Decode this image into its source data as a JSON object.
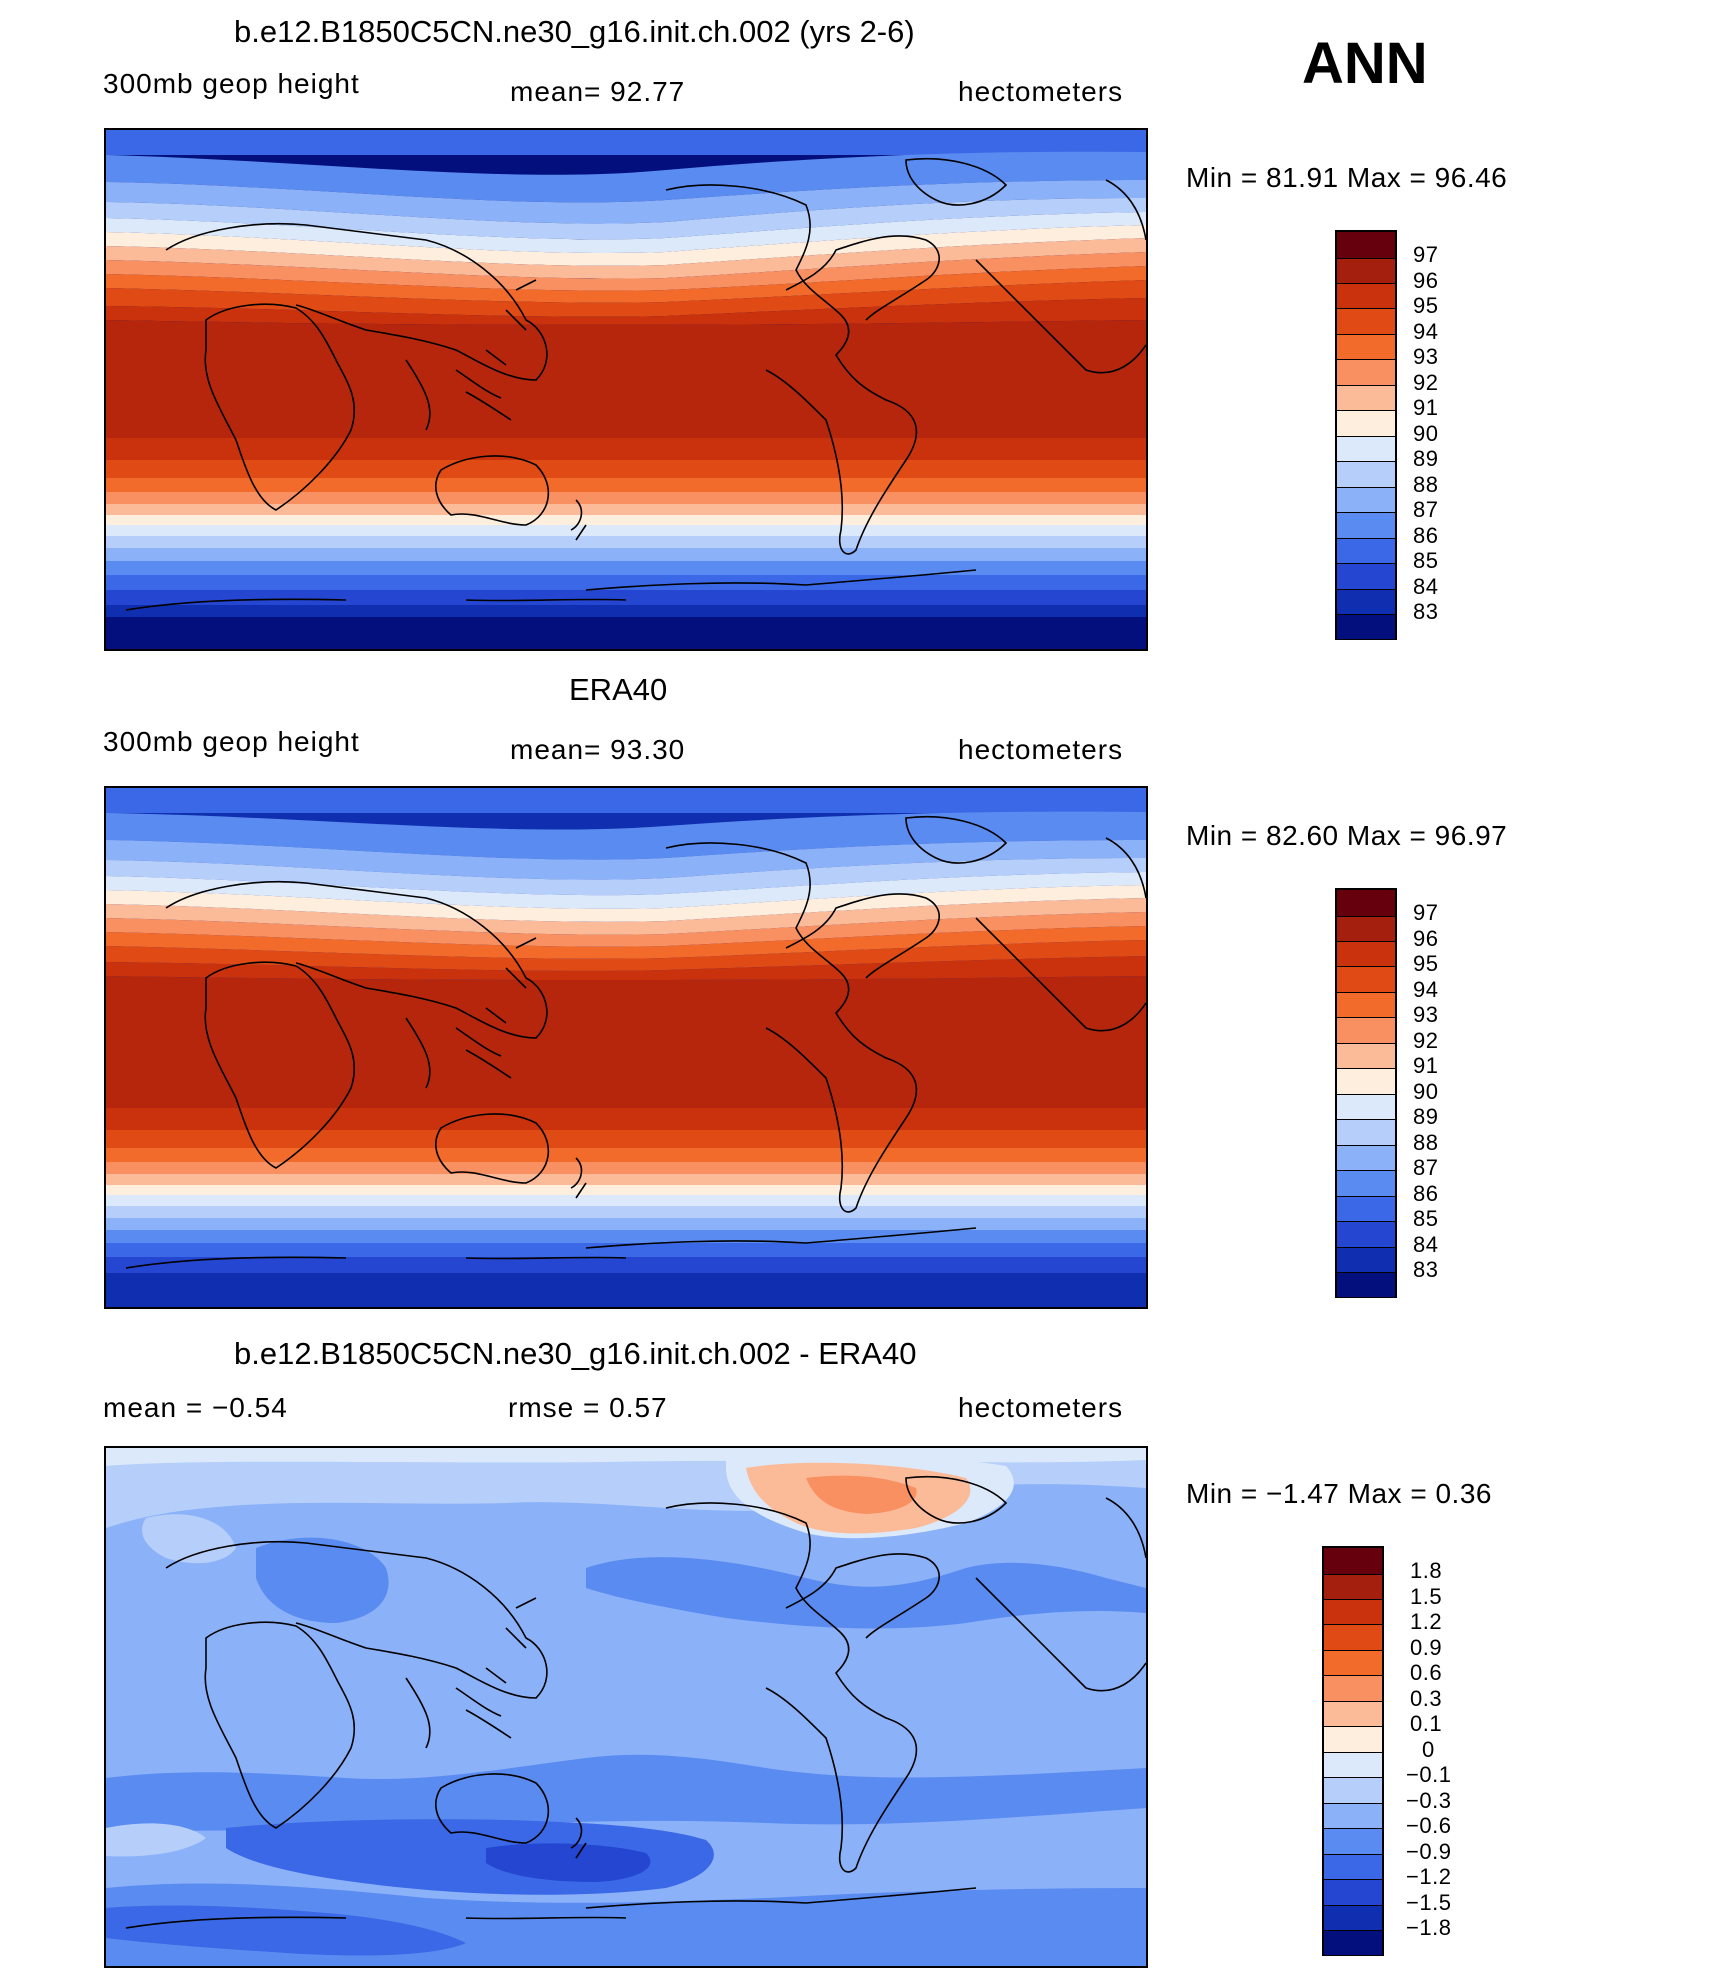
{
  "season": "ANN",
  "panels": [
    {
      "id": "model",
      "title": "b.e12.B1850C5CN.ne30_g16.init.ch.002 (yrs 2-6)",
      "left_label": "300mb  geop  height",
      "center_label": "mean=   92.77",
      "right_label": "hectometers",
      "min_max": "Min  =    81.91  Max  =    96.46"
    },
    {
      "id": "obs",
      "title": "ERA40",
      "left_label": "300mb  geop  height",
      "center_label": "mean=   93.30",
      "right_label": "hectometers",
      "min_max": "Min  =    82.60  Max  =    96.97"
    },
    {
      "id": "diff",
      "title": "b.e12.B1850C5CN.ne30_g16.init.ch.002 - ERA40",
      "left_label": "mean  =    −0.54",
      "center_label": "rmse  =     0.57",
      "right_label": "hectometers",
      "min_max": "Min  =    −1.47  Max  =     0.36"
    }
  ],
  "chart_data": [
    {
      "type": "heatmap",
      "title": "b.e12.B1850C5CN.ne30_g16.init.ch.002 (yrs 2-6)",
      "variable": "300mb geop height",
      "units": "hectometers",
      "mean": 92.77,
      "min": 81.91,
      "max": 96.46,
      "colorbar_levels": [
        "97",
        "96",
        "95",
        "94",
        "93",
        "92",
        "91",
        "90",
        "89",
        "88",
        "87",
        "86",
        "85",
        "84",
        "83"
      ]
    },
    {
      "type": "heatmap",
      "title": "ERA40",
      "variable": "300mb geop height",
      "units": "hectometers",
      "mean": 93.3,
      "min": 82.6,
      "max": 96.97,
      "colorbar_levels": [
        "97",
        "96",
        "95",
        "94",
        "93",
        "92",
        "91",
        "90",
        "89",
        "88",
        "87",
        "86",
        "85",
        "84",
        "83"
      ]
    },
    {
      "type": "heatmap",
      "title": "b.e12.B1850C5CN.ne30_g16.init.ch.002 - ERA40",
      "units": "hectometers",
      "mean": -0.54,
      "rmse": 0.57,
      "min": -1.47,
      "max": 0.36,
      "colorbar_levels": [
        "1.8",
        "1.5",
        "1.2",
        "0.9",
        "0.6",
        "0.3",
        "0.1",
        "0",
        "−0.1",
        "−0.3",
        "−0.6",
        "−0.9",
        "−1.2",
        "−1.5",
        "−1.8"
      ]
    }
  ],
  "colorbar_colors": [
    "#67000d",
    "#a51f0f",
    "#c9320c",
    "#e04a14",
    "#f26b2a",
    "#f99061",
    "#fcbb98",
    "#feeede",
    "#dce9fb",
    "#b5cffa",
    "#8bb1f8",
    "#5a8bf0",
    "#3b68e6",
    "#2446d1",
    "#102fb0",
    "#020f7c"
  ]
}
